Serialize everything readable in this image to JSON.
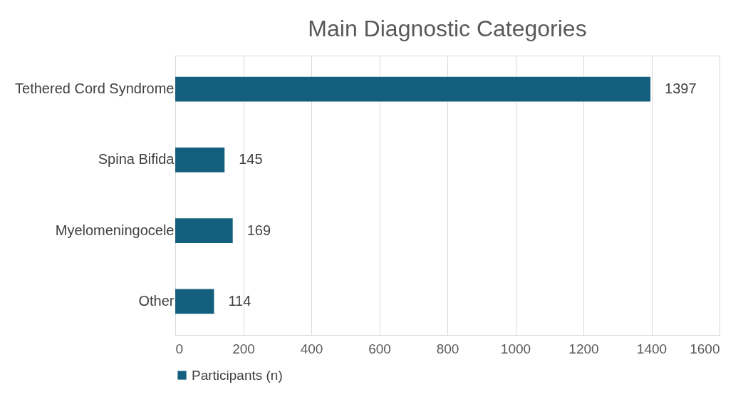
{
  "chart_data": {
    "type": "bar",
    "orientation": "horizontal",
    "title": "Main Diagnostic Categories",
    "categories": [
      "Tethered Cord Syndrome",
      "Spina Bifida",
      "Myelomeningocele",
      "Other"
    ],
    "series": [
      {
        "name": "Participants (n)",
        "color": "#155f7e",
        "values": [
          1397,
          145,
          169,
          114
        ]
      }
    ],
    "xlim": [
      0,
      1600
    ],
    "xticks": [
      0,
      200,
      400,
      600,
      800,
      1000,
      1200,
      1400,
      1600
    ],
    "grid": "x",
    "legend": "bottom",
    "data_labels": true
  }
}
